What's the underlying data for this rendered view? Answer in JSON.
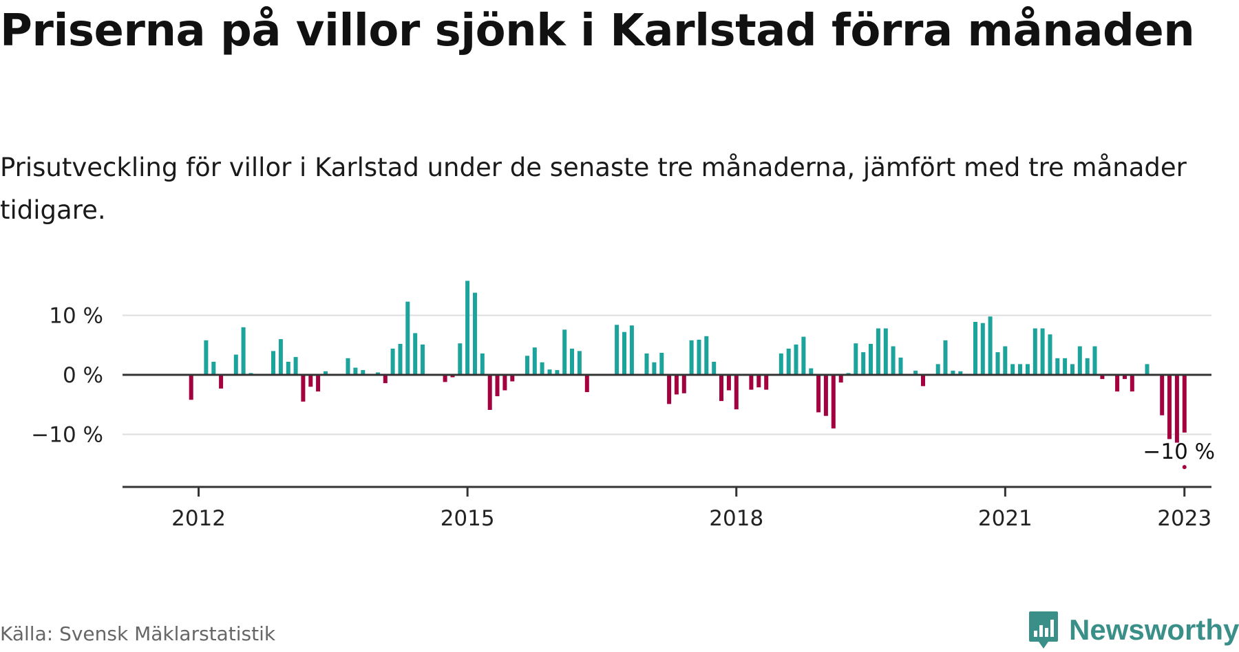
{
  "header": {
    "title": "Priserna på villor sjönk i Karlstad förra månaden",
    "subtitle": "Prisutveckling för villor i Karlstad under de senaste tre månaderna, jämfört med tre månader tidigare."
  },
  "footer": {
    "source": "Källa: Svensk Mäklarstatistik",
    "brand": "Newsworthy"
  },
  "colors": {
    "positive": "#1ba39c",
    "negative": "#a3003f",
    "gridline": "#dddddd",
    "axis": "#333333",
    "brand": "#3a8f88"
  },
  "chart_data": {
    "type": "bar",
    "title": "Priserna på villor sjönk i Karlstad förra månaden",
    "subtitle": "Prisutveckling för villor i Karlstad under de senaste tre månaderna, jämfört med tre månader tidigare.",
    "unit": "%",
    "x_start": "2011-10",
    "x_end": "2023-03",
    "x_ticks": [
      {
        "date": "2012-01",
        "label": "2012"
      },
      {
        "date": "2015-01",
        "label": "2015"
      },
      {
        "date": "2018-01",
        "label": "2018"
      },
      {
        "date": "2021-01",
        "label": "2021"
      },
      {
        "date": "2023-01",
        "label": "2023"
      }
    ],
    "y_ticks": [
      {
        "value": 10,
        "label": "10 %"
      },
      {
        "value": 0,
        "label": "0 %"
      },
      {
        "value": -10,
        "label": "−10 %"
      }
    ],
    "ylim": [
      -18,
      16
    ],
    "grid": true,
    "annotation": {
      "date": "2023-01",
      "value": -15.5,
      "label": "−10 %"
    },
    "series": [
      {
        "values": [
          {
            "x": "2011-10",
            "y": 0
          },
          {
            "x": "2011-11",
            "y": 0
          },
          {
            "x": "2011-12",
            "y": -4.2
          },
          {
            "x": "2012-01",
            "y": 0
          },
          {
            "x": "2012-02",
            "y": 5.8
          },
          {
            "x": "2012-03",
            "y": 2.2
          },
          {
            "x": "2012-04",
            "y": -2.3
          },
          {
            "x": "2012-05",
            "y": 0
          },
          {
            "x": "2012-06",
            "y": 3.4
          },
          {
            "x": "2012-07",
            "y": 8.0
          },
          {
            "x": "2012-08",
            "y": 0.3
          },
          {
            "x": "2012-09",
            "y": 0
          },
          {
            "x": "2012-10",
            "y": 0
          },
          {
            "x": "2012-11",
            "y": 4.0
          },
          {
            "x": "2012-12",
            "y": 6.0
          },
          {
            "x": "2013-01",
            "y": 2.2
          },
          {
            "x": "2013-02",
            "y": 3.0
          },
          {
            "x": "2013-03",
            "y": -4.5
          },
          {
            "x": "2013-04",
            "y": -2.0
          },
          {
            "x": "2013-05",
            "y": -2.8
          },
          {
            "x": "2013-06",
            "y": 0.6
          },
          {
            "x": "2013-07",
            "y": 0
          },
          {
            "x": "2013-08",
            "y": 0
          },
          {
            "x": "2013-09",
            "y": 2.8
          },
          {
            "x": "2013-10",
            "y": 1.2
          },
          {
            "x": "2013-11",
            "y": 0.8
          },
          {
            "x": "2013-12",
            "y": 0
          },
          {
            "x": "2014-01",
            "y": 0.4
          },
          {
            "x": "2014-02",
            "y": -1.4
          },
          {
            "x": "2014-03",
            "y": 4.4
          },
          {
            "x": "2014-04",
            "y": 5.2
          },
          {
            "x": "2014-05",
            "y": 12.3
          },
          {
            "x": "2014-06",
            "y": 7.0
          },
          {
            "x": "2014-07",
            "y": 5.1
          },
          {
            "x": "2014-08",
            "y": 0
          },
          {
            "x": "2014-09",
            "y": 0
          },
          {
            "x": "2014-10",
            "y": -1.2
          },
          {
            "x": "2014-11",
            "y": -0.4
          },
          {
            "x": "2014-12",
            "y": 5.3
          },
          {
            "x": "2015-01",
            "y": 15.8
          },
          {
            "x": "2015-02",
            "y": 13.8
          },
          {
            "x": "2015-03",
            "y": 3.6
          },
          {
            "x": "2015-04",
            "y": -5.9
          },
          {
            "x": "2015-05",
            "y": -3.6
          },
          {
            "x": "2015-06",
            "y": -2.6
          },
          {
            "x": "2015-07",
            "y": -1.1
          },
          {
            "x": "2015-08",
            "y": 0
          },
          {
            "x": "2015-09",
            "y": 3.2
          },
          {
            "x": "2015-10",
            "y": 4.6
          },
          {
            "x": "2015-11",
            "y": 2.1
          },
          {
            "x": "2015-12",
            "y": 0.9
          },
          {
            "x": "2016-01",
            "y": 0.8
          },
          {
            "x": "2016-02",
            "y": 7.6
          },
          {
            "x": "2016-03",
            "y": 4.4
          },
          {
            "x": "2016-04",
            "y": 4.0
          },
          {
            "x": "2016-05",
            "y": -2.9
          },
          {
            "x": "2016-06",
            "y": 0
          },
          {
            "x": "2016-07",
            "y": 0
          },
          {
            "x": "2016-08",
            "y": 0
          },
          {
            "x": "2016-09",
            "y": 8.4
          },
          {
            "x": "2016-10",
            "y": 7.2
          },
          {
            "x": "2016-11",
            "y": 8.3
          },
          {
            "x": "2016-12",
            "y": 0
          },
          {
            "x": "2017-01",
            "y": 3.6
          },
          {
            "x": "2017-02",
            "y": 2.1
          },
          {
            "x": "2017-03",
            "y": 3.7
          },
          {
            "x": "2017-04",
            "y": -4.9
          },
          {
            "x": "2017-05",
            "y": -3.3
          },
          {
            "x": "2017-06",
            "y": -3.1
          },
          {
            "x": "2017-07",
            "y": 5.8
          },
          {
            "x": "2017-08",
            "y": 5.9
          },
          {
            "x": "2017-09",
            "y": 6.5
          },
          {
            "x": "2017-10",
            "y": 2.2
          },
          {
            "x": "2017-11",
            "y": -4.4
          },
          {
            "x": "2017-12",
            "y": -2.6
          },
          {
            "x": "2018-01",
            "y": -5.8
          },
          {
            "x": "2018-02",
            "y": 0
          },
          {
            "x": "2018-03",
            "y": -2.5
          },
          {
            "x": "2018-04",
            "y": -2.1
          },
          {
            "x": "2018-05",
            "y": -2.5
          },
          {
            "x": "2018-06",
            "y": 0
          },
          {
            "x": "2018-07",
            "y": 3.6
          },
          {
            "x": "2018-08",
            "y": 4.4
          },
          {
            "x": "2018-09",
            "y": 5.1
          },
          {
            "x": "2018-10",
            "y": 6.4
          },
          {
            "x": "2018-11",
            "y": 1.1
          },
          {
            "x": "2018-12",
            "y": -6.3
          },
          {
            "x": "2019-01",
            "y": -6.9
          },
          {
            "x": "2019-02",
            "y": -9.0
          },
          {
            "x": "2019-03",
            "y": -1.3
          },
          {
            "x": "2019-04",
            "y": 0.3
          },
          {
            "x": "2019-05",
            "y": 5.3
          },
          {
            "x": "2019-06",
            "y": 3.8
          },
          {
            "x": "2019-07",
            "y": 5.2
          },
          {
            "x": "2019-08",
            "y": 7.8
          },
          {
            "x": "2019-09",
            "y": 7.8
          },
          {
            "x": "2019-10",
            "y": 4.8
          },
          {
            "x": "2019-11",
            "y": 2.9
          },
          {
            "x": "2019-12",
            "y": 0
          },
          {
            "x": "2020-01",
            "y": 0.7
          },
          {
            "x": "2020-02",
            "y": -1.9
          },
          {
            "x": "2020-03",
            "y": 0
          },
          {
            "x": "2020-04",
            "y": 1.8
          },
          {
            "x": "2020-05",
            "y": 5.8
          },
          {
            "x": "2020-06",
            "y": 0.7
          },
          {
            "x": "2020-07",
            "y": 0.6
          },
          {
            "x": "2020-08",
            "y": 0
          },
          {
            "x": "2020-09",
            "y": 8.9
          },
          {
            "x": "2020-10",
            "y": 8.7
          },
          {
            "x": "2020-11",
            "y": 9.8
          },
          {
            "x": "2020-12",
            "y": 3.8
          },
          {
            "x": "2021-01",
            "y": 4.8
          },
          {
            "x": "2021-02",
            "y": 1.8
          },
          {
            "x": "2021-03",
            "y": 1.8
          },
          {
            "x": "2021-04",
            "y": 1.8
          },
          {
            "x": "2021-05",
            "y": 7.8
          },
          {
            "x": "2021-06",
            "y": 7.8
          },
          {
            "x": "2021-07",
            "y": 6.8
          },
          {
            "x": "2021-08",
            "y": 2.8
          },
          {
            "x": "2021-09",
            "y": 2.8
          },
          {
            "x": "2021-10",
            "y": 1.8
          },
          {
            "x": "2021-11",
            "y": 4.8
          },
          {
            "x": "2021-12",
            "y": 2.8
          },
          {
            "x": "2022-01",
            "y": 4.8
          },
          {
            "x": "2022-02",
            "y": -0.7
          },
          {
            "x": "2022-03",
            "y": 0
          },
          {
            "x": "2022-04",
            "y": -2.8
          },
          {
            "x": "2022-05",
            "y": -0.7
          },
          {
            "x": "2022-06",
            "y": -2.8
          },
          {
            "x": "2022-07",
            "y": 0
          },
          {
            "x": "2022-08",
            "y": 1.8
          },
          {
            "x": "2022-09",
            "y": 0
          },
          {
            "x": "2022-10",
            "y": -6.8
          },
          {
            "x": "2022-11",
            "y": -10.8
          },
          {
            "x": "2022-12",
            "y": -11.4
          },
          {
            "x": "2023-01",
            "y": -9.7
          }
        ]
      }
    ]
  }
}
